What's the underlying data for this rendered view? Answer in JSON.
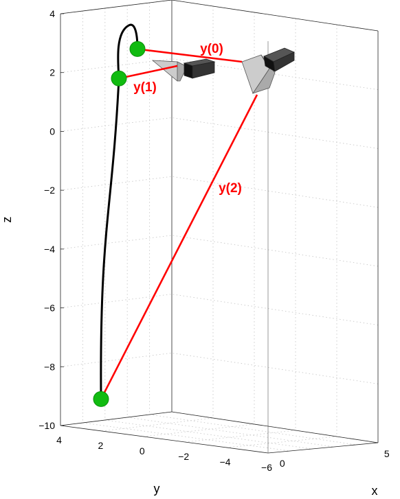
{
  "chart_data": {
    "type": "3d-line-scatter",
    "axes": {
      "x": {
        "label": "x",
        "ticks": [
          "0",
          "5"
        ]
      },
      "y": {
        "label": "y",
        "ticks": [
          "4",
          "2",
          "0",
          "−2",
          "−4",
          "−6"
        ]
      },
      "z": {
        "label": "z",
        "ticks": [
          "4",
          "2",
          "0",
          "−2",
          "−4",
          "−6",
          "−8",
          "−10"
        ],
        "lim": [
          -10,
          4
        ]
      }
    },
    "grid": true,
    "trajectory": {
      "color": "#000000",
      "apex_z": 3.6
    },
    "points": [
      {
        "name": "y(0)",
        "z": 2.8
      },
      {
        "name": "y(1)",
        "z": 1.8
      },
      {
        "name": "y(2)",
        "z": -9.1
      }
    ],
    "rays": [
      {
        "label": "y(0)",
        "color": "#ff0000"
      },
      {
        "label": "y(1)",
        "color": "#ff0000"
      },
      {
        "label": "y(2)",
        "color": "#ff0000"
      }
    ],
    "colors": {
      "point": "#11bb11",
      "ray": "#ff0000",
      "camera_body": "#333333",
      "camera_lens": "#cccccc"
    }
  }
}
